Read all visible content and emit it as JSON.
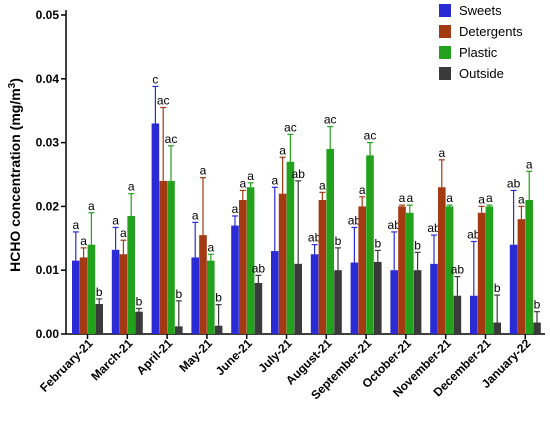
{
  "chart_data": {
    "type": "bar",
    "ylabel_main": "HCHO concentration (mg/m",
    "ylabel_sup": "3",
    "ylabel_end": ")",
    "ylim": [
      0,
      0.05
    ],
    "yticks": [
      "0.00",
      "0.01",
      "0.02",
      "0.03",
      "0.04",
      "0.05"
    ],
    "ytick_values": [
      0,
      0.01,
      0.02,
      0.03,
      0.04,
      0.05
    ],
    "grid": false,
    "legend_position": "top-right",
    "categories": [
      "February-21",
      "March-21",
      "April-21",
      "May-21",
      "June-21",
      "July-21",
      "August-21",
      "September-21",
      "October-21",
      "November-21",
      "December-21",
      "January-22"
    ],
    "series": [
      {
        "name": "Sweets",
        "color": "#2b2bd6",
        "values": [
          0.0115,
          0.0132,
          0.033,
          0.012,
          0.017,
          0.013,
          0.0125,
          0.0112,
          0.01,
          0.011,
          0.006,
          0.014
        ],
        "errors": [
          0.0045,
          0.0035,
          0.0058,
          0.0055,
          0.0015,
          0.01,
          0.0015,
          0.0055,
          0.006,
          0.0045,
          0.0085,
          0.0085
        ],
        "labels": [
          "a",
          "a",
          "c",
          "a",
          "a",
          "a",
          "ab",
          "ab",
          "ab",
          "ab",
          "ab",
          "ab"
        ]
      },
      {
        "name": "Detergents",
        "color": "#a33a12",
        "values": [
          0.012,
          0.0125,
          0.024,
          0.0155,
          0.021,
          0.022,
          0.021,
          0.02,
          0.02,
          0.023,
          0.019,
          0.018
        ],
        "errors": [
          0.0015,
          0.0022,
          0.0115,
          0.009,
          0.0015,
          0.0057,
          0.0012,
          0.0015,
          0.0002,
          0.0043,
          0.001,
          0.002
        ],
        "labels": [
          "a",
          "a",
          "ac",
          "a",
          "a",
          "a",
          "a",
          "a",
          "a",
          "a",
          "a",
          "a"
        ]
      },
      {
        "name": "Plastic",
        "color": "#22a11c",
        "values": [
          0.014,
          0.0185,
          0.024,
          0.0115,
          0.023,
          0.027,
          0.029,
          0.028,
          0.019,
          0.02,
          0.02,
          0.021
        ],
        "errors": [
          0.005,
          0.0035,
          0.0055,
          0.001,
          0.0007,
          0.0043,
          0.0035,
          0.002,
          0.0012,
          0.0002,
          0.0002,
          0.0045
        ],
        "labels": [
          "a",
          "a",
          "ac",
          "a",
          "a",
          "ac",
          "ac",
          "ac",
          "a",
          "a",
          "a",
          "a"
        ]
      },
      {
        "name": "Outside",
        "color": "#3a3a3a",
        "values": [
          0.0047,
          0.0035,
          0.0012,
          0.0013,
          0.008,
          0.011,
          0.01,
          0.0113,
          0.01,
          0.006,
          0.0018,
          0.0018
        ],
        "errors": [
          0.0008,
          0.0005,
          0.004,
          0.0033,
          0.0012,
          0.013,
          0.0035,
          0.0018,
          0.0028,
          0.003,
          0.0043,
          0.0017
        ],
        "labels": [
          "b",
          "b",
          "b",
          "b",
          "ab",
          "ab",
          "b",
          "b",
          "b",
          "ab",
          "b",
          "b"
        ]
      }
    ]
  }
}
